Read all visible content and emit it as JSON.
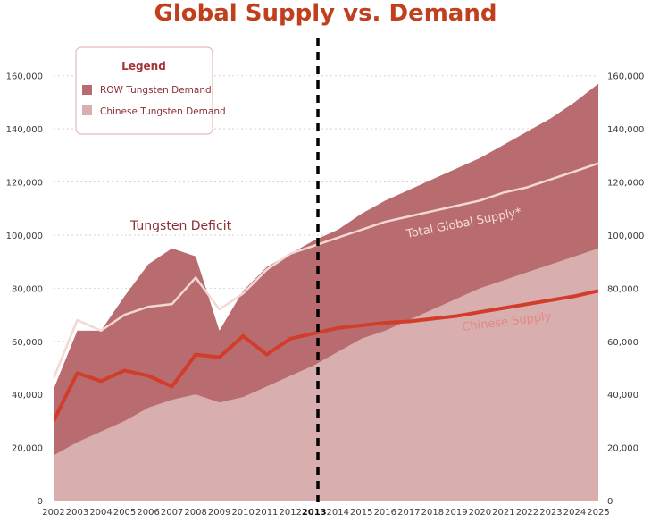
{
  "chart_data": {
    "type": "area",
    "title": "Global Supply vs. Demand",
    "categories": [
      "2002",
      "2003",
      "2004",
      "2005",
      "2006",
      "2007",
      "2008",
      "2009",
      "2010",
      "2011",
      "2012",
      "2013",
      "2014",
      "2015",
      "2016",
      "2017",
      "2018",
      "2019",
      "2020",
      "2021",
      "2022",
      "2023",
      "2024",
      "2025"
    ],
    "highlight_category": "2013",
    "ylim": [
      0,
      170000
    ],
    "yticks": [
      0,
      20000,
      40000,
      60000,
      80000,
      100000,
      120000,
      140000,
      160000
    ],
    "ytick_labels": [
      "0",
      "20,000",
      "40,000",
      "60,000",
      "80,000",
      "100,000",
      "120,000",
      "140,000",
      "160,000"
    ],
    "y_axis_both_sides": true,
    "grid": "horizontal dotted",
    "legend": {
      "title": "Legend",
      "placement": "top-left",
      "entries": [
        {
          "label": "ROW Tungsten Demand",
          "color": "#b86c6f"
        },
        {
          "label": "Chinese Tungsten Demand",
          "color": "#d9aeae"
        }
      ]
    },
    "series": [
      {
        "name": "Chinese Tungsten Demand",
        "kind": "area",
        "color": "#d9aeae",
        "values": [
          17000,
          22000,
          26000,
          30000,
          35000,
          38000,
          40000,
          37000,
          39000,
          43000,
          47000,
          51000,
          56000,
          61000,
          64000,
          68000,
          72000,
          76000,
          80000,
          83000,
          86000,
          89000,
          92000,
          95000
        ]
      },
      {
        "name": "ROW Tungsten Demand",
        "kind": "stacked-area",
        "color": "#b86c6f",
        "totals": [
          42000,
          64000,
          64000,
          77000,
          89000,
          95000,
          92000,
          64000,
          79000,
          88000,
          93000,
          98000,
          102000,
          108000,
          113000,
          117000,
          121000,
          125000,
          129000,
          134000,
          139000,
          144000,
          150000,
          157000
        ]
      },
      {
        "name": "Total Global Supply*",
        "kind": "line",
        "color": "#f2d8d4",
        "values": [
          46000,
          68000,
          64000,
          70000,
          73000,
          74000,
          84000,
          72000,
          78000,
          87000,
          93000,
          96000,
          99000,
          102000,
          105000,
          107000,
          109000,
          111000,
          113000,
          116000,
          118000,
          121000,
          124000,
          127000
        ]
      },
      {
        "name": "Chinese Supply",
        "kind": "line",
        "color": "#d23c2a",
        "values": [
          30000,
          48000,
          45000,
          49000,
          47000,
          43000,
          55000,
          54000,
          62000,
          55000,
          61000,
          63000,
          65000,
          66000,
          67000,
          67500,
          68500,
          69500,
          71000,
          72500,
          74000,
          75500,
          77000,
          79000
        ]
      }
    ],
    "annotations": [
      {
        "text": "Tungsten Deficit",
        "color": "#8c2f35"
      },
      {
        "text": "Total Global Supply*",
        "color": "#f6dcd8"
      },
      {
        "text": "Chinese Supply",
        "color": "#e08a86"
      }
    ]
  }
}
